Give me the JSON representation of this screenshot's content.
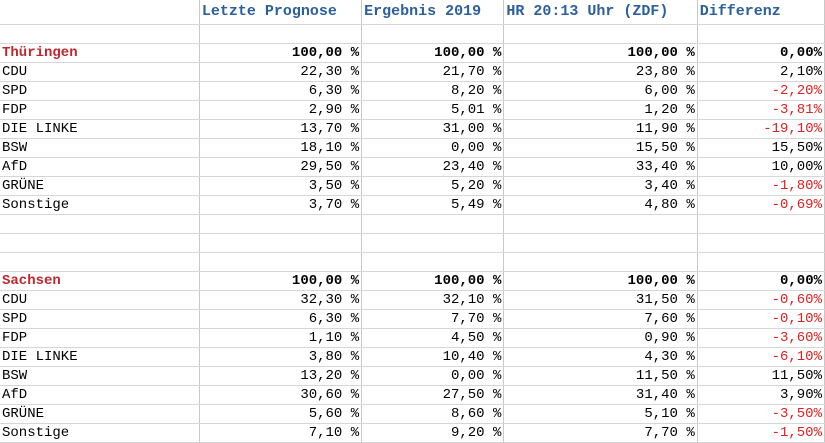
{
  "header": [
    "",
    "Letzte Prognose",
    "Ergebnis 2019",
    "HR 20:13 Uhr (ZDF)",
    "Differenz"
  ],
  "sections": [
    {
      "title": "Thüringen",
      "totals": [
        "100,00 %",
        "100,00 %",
        "100,00 %",
        "0,00%"
      ],
      "rows": [
        {
          "party": "CDU",
          "values": [
            "22,30 %",
            "21,70 %",
            "23,80 %",
            "2,10%"
          ],
          "neg": false
        },
        {
          "party": "SPD",
          "values": [
            "6,30 %",
            "8,20 %",
            "6,00 %",
            "-2,20%"
          ],
          "neg": true
        },
        {
          "party": "FDP",
          "values": [
            "2,90 %",
            "5,01 %",
            "1,20 %",
            "-3,81%"
          ],
          "neg": true
        },
        {
          "party": "DIE LINKE",
          "values": [
            "13,70 %",
            "31,00 %",
            "11,90 %",
            "-19,10%"
          ],
          "neg": true
        },
        {
          "party": "BSW",
          "values": [
            "18,10 %",
            "0,00 %",
            "15,50 %",
            "15,50%"
          ],
          "neg": false
        },
        {
          "party": "AfD",
          "values": [
            "29,50 %",
            "23,40 %",
            "33,40 %",
            "10,00%"
          ],
          "neg": false
        },
        {
          "party": "GRÜNE",
          "values": [
            "3,50 %",
            "5,20 %",
            "3,40 %",
            "-1,80%"
          ],
          "neg": true
        },
        {
          "party": "Sonstige",
          "values": [
            "3,70 %",
            "5,49 %",
            "4,80 %",
            "-0,69%"
          ],
          "neg": true
        }
      ]
    },
    {
      "title": "Sachsen",
      "totals": [
        "100,00 %",
        "100,00 %",
        "100,00 %",
        "0,00%"
      ],
      "rows": [
        {
          "party": "CDU",
          "values": [
            "32,30 %",
            "32,10 %",
            "31,50 %",
            "-0,60%"
          ],
          "neg": true
        },
        {
          "party": "SPD",
          "values": [
            "6,30 %",
            "7,70 %",
            "7,60 %",
            "-0,10%"
          ],
          "neg": true
        },
        {
          "party": "FDP",
          "values": [
            "1,10 %",
            "4,50 %",
            "0,90 %",
            "-3,60%"
          ],
          "neg": true
        },
        {
          "party": "DIE LINKE",
          "values": [
            "3,80 %",
            "10,40 %",
            "4,30 %",
            "-6,10%"
          ],
          "neg": true
        },
        {
          "party": "BSW",
          "values": [
            "13,20 %",
            "0,00 %",
            "11,50 %",
            "11,50%"
          ],
          "neg": false
        },
        {
          "party": "AfD",
          "values": [
            "30,60 %",
            "27,50 %",
            "31,40 %",
            "3,90%"
          ],
          "neg": false
        },
        {
          "party": "GRÜNE",
          "values": [
            "5,60 %",
            "8,60 %",
            "5,10 %",
            "-3,50%"
          ],
          "neg": true
        },
        {
          "party": "Sonstige",
          "values": [
            "7,10 %",
            "9,20 %",
            "7,70 %",
            "-1,50%"
          ],
          "neg": true
        }
      ]
    }
  ],
  "colors": {
    "header_text": "#2b5f9e",
    "section_title": "#c0272d",
    "negative": "#e02020",
    "grid": "#c8c8c8"
  }
}
